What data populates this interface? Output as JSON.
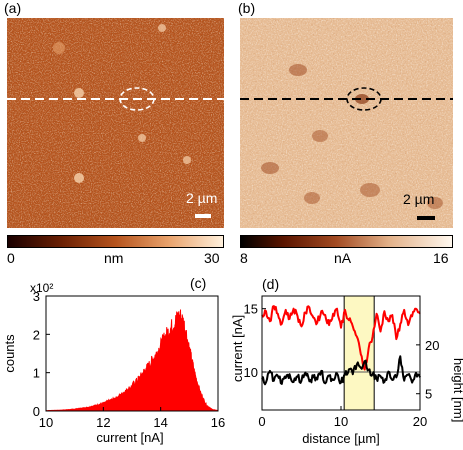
{
  "panel_a": {
    "label": "(a)",
    "scalebar": "2 µm",
    "colorbar": {
      "min": "0",
      "unit": "nm",
      "max": "30"
    },
    "colors": {
      "dark": "#6b2004",
      "mid": "#b5531d",
      "light": "#f2c49a"
    }
  },
  "panel_b": {
    "label": "(b)",
    "scalebar": "2 µm",
    "colorbar": {
      "min": "8",
      "unit": "nA",
      "max": "16"
    },
    "colors": {
      "dark": "#9a4a22",
      "mid": "#e2b78f",
      "light": "#f7e4cc"
    }
  },
  "panel_c": {
    "label": "(c)"
  },
  "panel_d": {
    "label": "(d)"
  },
  "chart_data": [
    {
      "type": "area",
      "panel": "(c)",
      "xlabel": "current [nA]",
      "ylabel": "counts",
      "y_multiplier": "x10²",
      "xlim": [
        10,
        16
      ],
      "ylim": [
        0,
        3
      ],
      "xticks": [
        "10",
        "12",
        "14",
        "16"
      ],
      "yticks": [
        "0",
        "1",
        "2",
        "3"
      ],
      "series": [
        {
          "color": "#ff0000",
          "x": [
            10.0,
            10.5,
            11.0,
            11.5,
            12.0,
            12.5,
            13.0,
            13.3,
            13.6,
            13.9,
            14.1,
            14.3,
            14.5,
            14.6,
            14.7,
            14.8,
            14.9,
            15.0,
            15.2,
            15.4,
            15.6,
            15.8,
            16.0
          ],
          "y": [
            0.01,
            0.02,
            0.05,
            0.1,
            0.2,
            0.36,
            0.65,
            0.9,
            1.2,
            1.55,
            1.85,
            2.1,
            2.3,
            2.45,
            2.45,
            2.3,
            2.0,
            1.6,
            0.95,
            0.45,
            0.15,
            0.04,
            0.01
          ]
        }
      ]
    },
    {
      "type": "line",
      "panel": "(d)",
      "xlabel": "distance [µm]",
      "ylabel_left": "current [nA]",
      "ylabel_right": "height [nm]",
      "xlim": [
        0,
        20
      ],
      "xticks": [
        "0",
        "10",
        "20"
      ],
      "yticks_left": [
        "10",
        "15"
      ],
      "yticks_right": [
        "5",
        "20"
      ],
      "highlight_x": [
        10.4,
        14.2
      ],
      "highlight_color": "#fdf8c2",
      "series": [
        {
          "axis": "left",
          "ylim": [
            7,
            16
          ],
          "color": "#ff0000",
          "x": [
            0,
            0.5,
            1,
            1.5,
            2,
            2.5,
            3,
            3.5,
            4,
            4.5,
            5,
            5.5,
            6,
            6.5,
            7,
            7.5,
            8,
            8.5,
            9,
            9.5,
            10,
            10.5,
            11,
            11.5,
            12,
            12.5,
            13,
            13.5,
            14,
            14.5,
            15,
            15.5,
            16,
            16.5,
            17,
            17.5,
            18,
            18.5,
            19,
            19.5,
            20
          ],
          "y": [
            14.5,
            14.8,
            14.0,
            15.2,
            14.6,
            13.8,
            14.9,
            14.2,
            15.0,
            14.4,
            13.6,
            14.7,
            15.1,
            14.3,
            13.9,
            14.8,
            14.5,
            13.7,
            14.6,
            15.0,
            13.5,
            14.9,
            14.1,
            13.6,
            12.8,
            11.4,
            10.2,
            11.9,
            12.8,
            14.6,
            13.2,
            14.8,
            14.0,
            14.5,
            12.6,
            13.8,
            14.9,
            13.7,
            14.4,
            15.0,
            14.6
          ]
        },
        {
          "axis": "right",
          "ylim": [
            0,
            35
          ],
          "color": "#000000",
          "x": [
            0,
            0.5,
            1,
            1.5,
            2,
            2.5,
            3,
            3.5,
            4,
            4.5,
            5,
            5.5,
            6,
            6.5,
            7,
            7.5,
            8,
            8.5,
            9,
            9.5,
            10,
            10.5,
            11,
            11.5,
            12,
            12.5,
            13,
            13.5,
            14,
            14.5,
            15,
            15.5,
            16,
            16.5,
            17,
            17.5,
            18,
            18.5,
            19,
            19.5,
            20
          ],
          "y": [
            9.5,
            8.5,
            12.0,
            9.0,
            10.5,
            8.0,
            9.8,
            11.0,
            8.6,
            10.2,
            9.0,
            11.5,
            8.8,
            10.0,
            9.4,
            12.0,
            8.2,
            10.6,
            9.2,
            11.2,
            8.4,
            10.8,
            12.5,
            11.0,
            14.0,
            13.0,
            15.0,
            12.4,
            11.0,
            9.6,
            10.4,
            8.6,
            11.8,
            9.2,
            10.0,
            16.5,
            9.0,
            10.8,
            8.4,
            11.4,
            10.0
          ]
        }
      ]
    }
  ]
}
